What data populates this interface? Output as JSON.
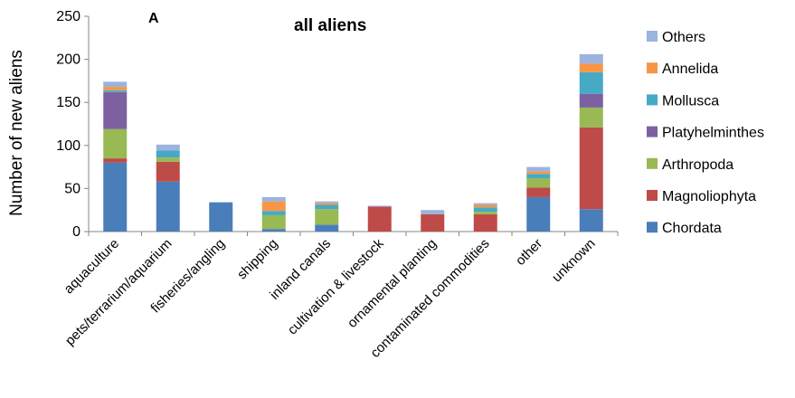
{
  "chart_data": {
    "type": "bar",
    "stacked": true,
    "panel_label": "A",
    "title": "all aliens",
    "xlabel": "",
    "ylabel": "Number of new aliens",
    "ylim": [
      0,
      250
    ],
    "yticks": [
      0,
      50,
      100,
      150,
      200,
      250
    ],
    "grid": false,
    "legend_position": "right",
    "categories": [
      "aquaculture",
      "pets/terrarium/aquarium",
      "fisheries/angling",
      "shipping",
      "inland canals",
      "cultivation & livestock",
      "ornamental planting",
      "contaminated commodities",
      "other",
      "unknown"
    ],
    "series": [
      {
        "name": "Chordata",
        "color": "#4a7ebb",
        "values": [
          80,
          58,
          34,
          3,
          8,
          0,
          0,
          0,
          40,
          26
        ]
      },
      {
        "name": "Magnoliophyta",
        "color": "#be4b48",
        "values": [
          5,
          23,
          0,
          0,
          0,
          29,
          20,
          20,
          11,
          95
        ]
      },
      {
        "name": "Arthropoda",
        "color": "#98b954",
        "values": [
          34,
          5,
          0,
          16,
          18,
          0,
          0,
          3,
          11,
          23
        ]
      },
      {
        "name": "Platyhelminthes",
        "color": "#7d60a0",
        "values": [
          43,
          0,
          0,
          0,
          0,
          0,
          0,
          0,
          0,
          16
        ]
      },
      {
        "name": "Mollusca",
        "color": "#46aac5",
        "values": [
          2,
          8,
          0,
          5,
          5,
          0,
          0,
          5,
          5,
          25
        ]
      },
      {
        "name": "Annelida",
        "color": "#f79646",
        "values": [
          4,
          0,
          0,
          11,
          2,
          0,
          0,
          3,
          3,
          10
        ]
      },
      {
        "name": "Others",
        "color": "#9bb3de",
        "values": [
          6,
          7,
          0,
          5,
          2,
          1,
          5,
          2,
          5,
          11
        ]
      }
    ]
  }
}
